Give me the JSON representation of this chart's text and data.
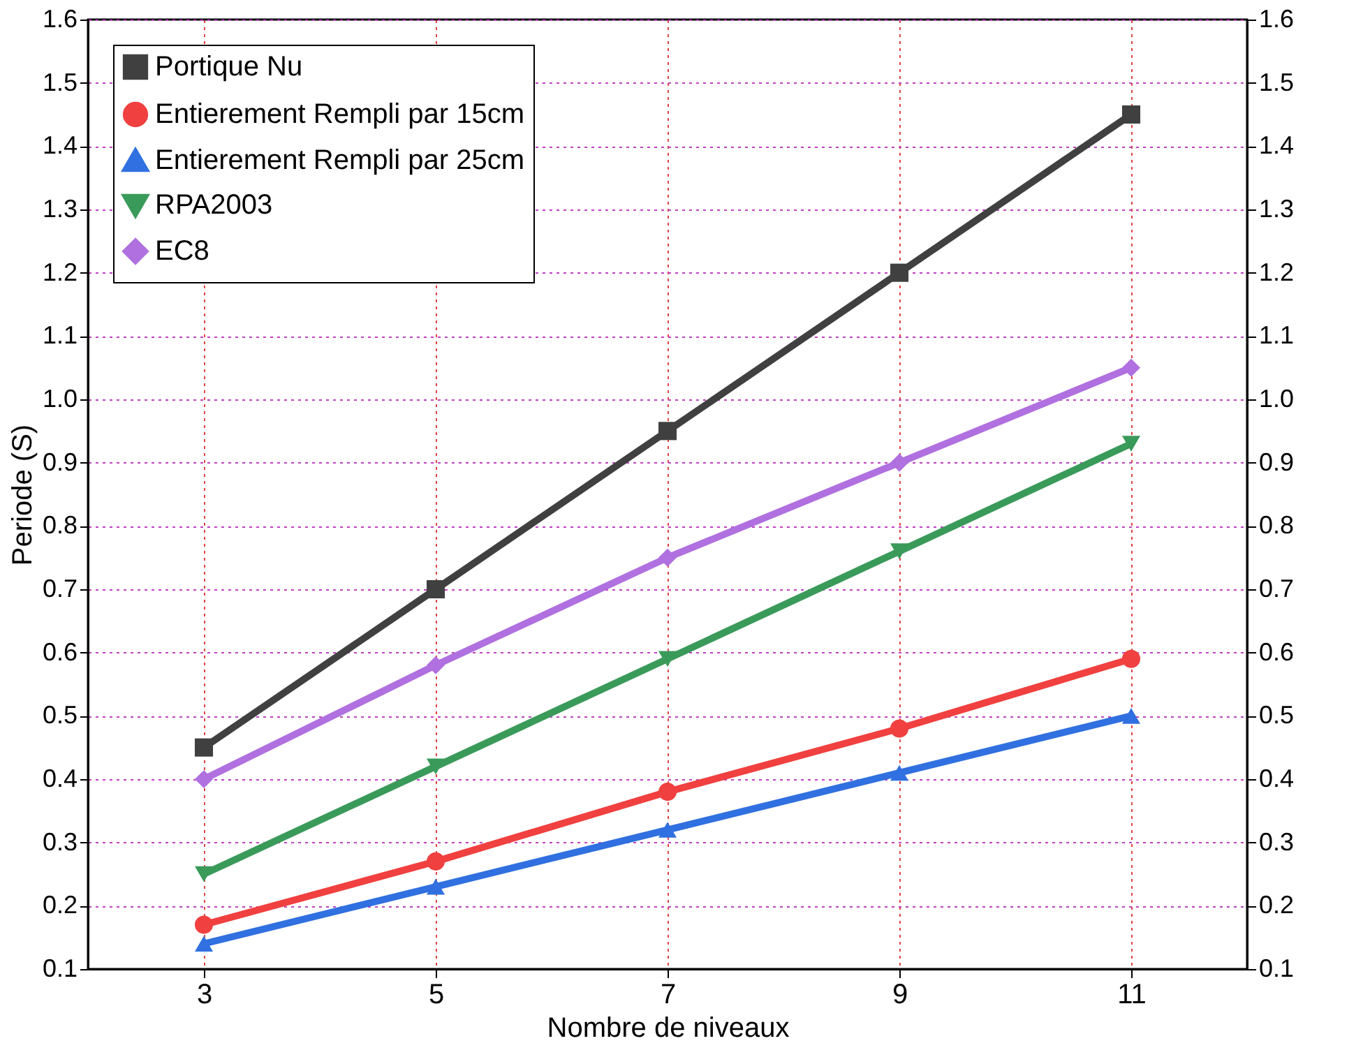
{
  "chart_data": {
    "type": "line",
    "xlabel": "Nombre de niveaux",
    "ylabel": "Periode (S)",
    "x": [
      3,
      5,
      7,
      9,
      11
    ],
    "series": [
      {
        "name": "Portique Nu",
        "color": "#404040",
        "marker": "square",
        "values": [
          0.45,
          0.7,
          0.95,
          1.2,
          1.45
        ]
      },
      {
        "name": "Entierement Rempli par 15cm",
        "color": "#f04040",
        "marker": "circle",
        "values": [
          0.17,
          0.27,
          0.38,
          0.48,
          0.59
        ]
      },
      {
        "name": "Entierement Rempli par 25cm",
        "color": "#3070e0",
        "marker": "triangle",
        "values": [
          0.14,
          0.23,
          0.32,
          0.41,
          0.5
        ]
      },
      {
        "name": "RPA2003",
        "color": "#3a9a5a",
        "marker": "triangle-down",
        "values": [
          0.25,
          0.42,
          0.59,
          0.76,
          0.93
        ]
      },
      {
        "name": "EC8",
        "color": "#b070e0",
        "marker": "diamond",
        "values": [
          0.4,
          0.58,
          0.75,
          0.9,
          1.05
        ]
      }
    ],
    "xlim": [
      2,
      12
    ],
    "xticks": [
      3,
      5,
      7,
      9,
      11
    ],
    "ylim": [
      0.1,
      1.6
    ],
    "yticks": [
      0.1,
      0.2,
      0.3,
      0.4,
      0.5,
      0.6,
      0.7,
      0.8,
      0.9,
      {
        "value": 1.0,
        "label": "1.0"
      },
      1.1,
      1.2,
      1.3,
      1.4,
      1.5,
      1.6
    ],
    "y2lim": [
      0.1,
      1.6
    ],
    "y2ticks": [
      0.1,
      0.2,
      0.3,
      0.4,
      0.5,
      0.6,
      0.7,
      0.8,
      0.9,
      {
        "value": 1.0,
        "label": "1.0"
      },
      1.1,
      1.2,
      1.3,
      1.4,
      1.5,
      1.6
    ],
    "grid": true,
    "legend": "top left",
    "line_style": "solid"
  }
}
